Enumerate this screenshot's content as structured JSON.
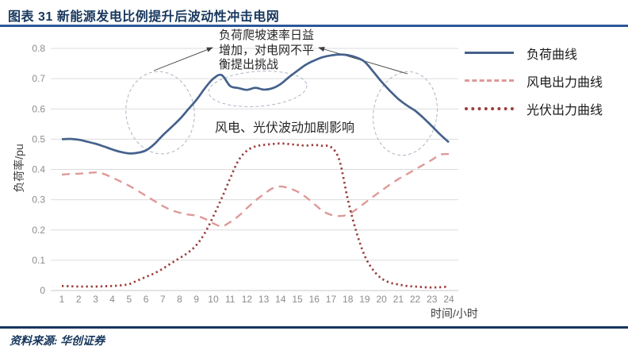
{
  "header": {
    "title": "图表 31  新能源发电比例提升后波动性冲击电网"
  },
  "footer": {
    "source": "资料来源: 华创证券"
  },
  "chart_data": {
    "type": "line",
    "title": "",
    "xlabel": "时间/小时",
    "ylabel": "负荷率/pu",
    "xlim": [
      1,
      24
    ],
    "ylim": [
      0,
      0.8
    ],
    "grid": "horizontal",
    "legend_position": "right",
    "x_ticks": [
      1,
      2,
      3,
      4,
      5,
      6,
      7,
      8,
      9,
      10,
      11,
      12,
      13,
      14,
      15,
      16,
      17,
      18,
      19,
      20,
      21,
      22,
      23,
      24
    ],
    "y_ticks": [
      "0",
      "0.1",
      "0.2",
      "0.3",
      "0.4",
      "0.5",
      "0.6",
      "0.7",
      "0.8"
    ],
    "x_start": 1,
    "x_step": 0.5,
    "series": [
      {
        "key": "load",
        "name": "负荷曲线",
        "style": "solid",
        "color": "#45618C",
        "values": [
          0.5,
          0.501,
          0.498,
          0.492,
          0.485,
          0.476,
          0.466,
          0.458,
          0.453,
          0.455,
          0.463,
          0.484,
          0.513,
          0.539,
          0.566,
          0.598,
          0.63,
          0.668,
          0.7,
          0.712,
          0.676,
          0.669,
          0.663,
          0.67,
          0.664,
          0.668,
          0.682,
          0.705,
          0.726,
          0.746,
          0.76,
          0.771,
          0.777,
          0.78,
          0.778,
          0.77,
          0.756,
          0.724,
          0.69,
          0.66,
          0.633,
          0.612,
          0.594,
          0.57,
          0.543,
          0.515,
          0.49
        ]
      },
      {
        "key": "wind",
        "name": "风电出力曲线",
        "style": "dashed",
        "color": "#DE9A98",
        "values": [
          0.383,
          0.385,
          0.386,
          0.388,
          0.39,
          0.385,
          0.373,
          0.36,
          0.346,
          0.33,
          0.313,
          0.296,
          0.279,
          0.266,
          0.257,
          0.251,
          0.247,
          0.237,
          0.222,
          0.212,
          0.226,
          0.246,
          0.272,
          0.297,
          0.318,
          0.337,
          0.344,
          0.338,
          0.327,
          0.309,
          0.286,
          0.263,
          0.25,
          0.246,
          0.251,
          0.268,
          0.289,
          0.31,
          0.33,
          0.35,
          0.368,
          0.384,
          0.4,
          0.416,
          0.432,
          0.449,
          0.451
        ]
      },
      {
        "key": "pv",
        "name": "光伏出力曲线",
        "style": "dotted",
        "color": "#9C3D3D",
        "values": [
          0.015,
          0.014,
          0.013,
          0.013,
          0.013,
          0.014,
          0.015,
          0.017,
          0.021,
          0.033,
          0.045,
          0.057,
          0.072,
          0.09,
          0.107,
          0.125,
          0.15,
          0.19,
          0.245,
          0.305,
          0.37,
          0.43,
          0.462,
          0.476,
          0.481,
          0.484,
          0.486,
          0.484,
          0.481,
          0.479,
          0.481,
          0.478,
          0.474,
          0.43,
          0.3,
          0.195,
          0.115,
          0.068,
          0.04,
          0.026,
          0.02,
          0.015,
          0.013,
          0.011,
          0.01,
          0.011,
          0.013
        ]
      }
    ],
    "annotations": {
      "ramp_note": "负荷爬坡速率日益增加，对电网不平衡提出挑战",
      "impact_note": "风电、光伏波动加剧影响"
    }
  }
}
